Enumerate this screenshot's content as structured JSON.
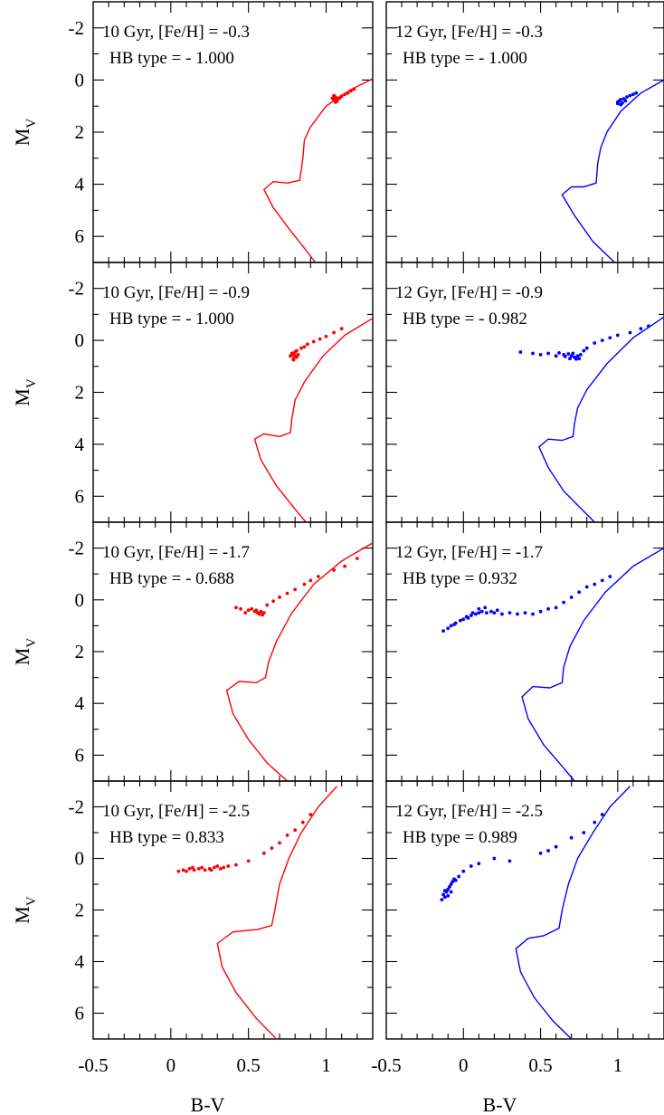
{
  "chart_data": [
    {
      "type": "scatter",
      "color": "#ff0000",
      "annotation_line1": "10 Gyr, [Fe/H] = -0.3",
      "annotation_line2": "HB type = - 1.000",
      "xlabel": "",
      "ylabel": "M_V",
      "xlim": [
        -0.5,
        1.3
      ],
      "ylim": [
        7,
        -3
      ],
      "x_ticks": [],
      "y_ticks": [
        "-2",
        "0",
        "2",
        "4",
        "6"
      ],
      "isochrone": [
        [
          1.3,
          -0.05
        ],
        [
          1.15,
          0.4
        ],
        [
          1.0,
          1.0
        ],
        [
          0.9,
          1.8
        ],
        [
          0.86,
          2.3
        ],
        [
          0.85,
          3.0
        ],
        [
          0.83,
          3.85
        ],
        [
          0.75,
          3.95
        ],
        [
          0.66,
          3.9
        ],
        [
          0.6,
          4.2
        ],
        [
          0.66,
          4.9
        ],
        [
          0.76,
          5.7
        ],
        [
          0.88,
          6.6
        ],
        [
          0.93,
          7.0
        ]
      ],
      "hb_stars": [
        [
          1.05,
          0.6
        ],
        [
          1.06,
          0.65
        ],
        [
          1.07,
          0.7
        ],
        [
          1.05,
          0.75
        ],
        [
          1.06,
          0.78
        ],
        [
          1.08,
          0.72
        ],
        [
          1.09,
          0.68
        ],
        [
          1.07,
          0.82
        ],
        [
          1.1,
          0.62
        ],
        [
          1.12,
          0.55
        ],
        [
          1.14,
          0.5
        ],
        [
          1.16,
          0.42
        ],
        [
          1.18,
          0.35
        ],
        [
          1.04,
          0.7
        ],
        [
          1.06,
          0.85
        ]
      ]
    },
    {
      "type": "scatter",
      "color": "#0000ff",
      "annotation_line1": "12 Gyr, [Fe/H] = -0.3",
      "annotation_line2": "HB type = - 1.000",
      "xlabel": "",
      "ylabel": "",
      "xlim": [
        -0.5,
        1.3
      ],
      "ylim": [
        7,
        -3
      ],
      "x_ticks": [],
      "y_ticks": [],
      "isochrone": [
        [
          1.3,
          0.0
        ],
        [
          1.15,
          0.5
        ],
        [
          1.02,
          1.2
        ],
        [
          0.93,
          2.0
        ],
        [
          0.89,
          2.6
        ],
        [
          0.87,
          3.2
        ],
        [
          0.86,
          3.95
        ],
        [
          0.78,
          4.1
        ],
        [
          0.7,
          4.1
        ],
        [
          0.64,
          4.4
        ],
        [
          0.72,
          5.2
        ],
        [
          0.84,
          6.2
        ],
        [
          0.98,
          7.0
        ]
      ],
      "hb_stars": [
        [
          1.0,
          0.85
        ],
        [
          1.01,
          0.8
        ],
        [
          1.02,
          0.75
        ],
        [
          1.0,
          0.9
        ],
        [
          1.03,
          0.88
        ],
        [
          1.04,
          0.72
        ],
        [
          1.06,
          0.65
        ],
        [
          1.08,
          0.6
        ],
        [
          1.1,
          0.55
        ],
        [
          1.12,
          0.5
        ],
        [
          1.02,
          0.95
        ],
        [
          1.05,
          0.8
        ]
      ]
    },
    {
      "type": "scatter",
      "color": "#ff0000",
      "annotation_line1": "10 Gyr, [Fe/H] = -0.9",
      "annotation_line2": "HB type = - 1.000",
      "xlabel": "",
      "ylabel": "M_V",
      "xlim": [
        -0.5,
        1.3
      ],
      "ylim": [
        7,
        -3
      ],
      "x_ticks": [],
      "y_ticks": [
        "-2",
        "0",
        "2",
        "4",
        "6"
      ],
      "isochrone": [
        [
          1.3,
          -0.85
        ],
        [
          1.12,
          -0.2
        ],
        [
          0.98,
          0.6
        ],
        [
          0.86,
          1.6
        ],
        [
          0.8,
          2.3
        ],
        [
          0.78,
          3.0
        ],
        [
          0.77,
          3.55
        ],
        [
          0.7,
          3.7
        ],
        [
          0.6,
          3.6
        ],
        [
          0.54,
          3.8
        ],
        [
          0.58,
          4.6
        ],
        [
          0.68,
          5.6
        ],
        [
          0.8,
          6.5
        ],
        [
          0.87,
          7.0
        ]
      ],
      "hb_stars": [
        [
          0.78,
          0.5
        ],
        [
          0.79,
          0.55
        ],
        [
          0.8,
          0.6
        ],
        [
          0.81,
          0.65
        ],
        [
          0.79,
          0.7
        ],
        [
          0.8,
          0.45
        ],
        [
          0.82,
          0.55
        ],
        [
          0.77,
          0.6
        ],
        [
          0.81,
          0.4
        ],
        [
          0.84,
          0.3
        ],
        [
          0.88,
          0.15
        ],
        [
          0.92,
          0.05
        ],
        [
          0.96,
          -0.05
        ],
        [
          1.0,
          -0.15
        ],
        [
          1.05,
          -0.3
        ],
        [
          1.1,
          -0.45
        ],
        [
          0.86,
          0.25
        ],
        [
          0.79,
          0.75
        ]
      ]
    },
    {
      "type": "scatter",
      "color": "#0000ff",
      "annotation_line1": "12 Gyr, [Fe/H] = -0.9",
      "annotation_line2": "HB type = - 0.982",
      "xlabel": "",
      "ylabel": "",
      "xlim": [
        -0.5,
        1.3
      ],
      "ylim": [
        7,
        -3
      ],
      "x_ticks": [],
      "y_ticks": [],
      "isochrone": [
        [
          1.3,
          -0.9
        ],
        [
          1.1,
          -0.1
        ],
        [
          0.93,
          0.9
        ],
        [
          0.8,
          1.9
        ],
        [
          0.74,
          2.6
        ],
        [
          0.72,
          3.2
        ],
        [
          0.71,
          3.7
        ],
        [
          0.64,
          3.85
        ],
        [
          0.55,
          3.8
        ],
        [
          0.49,
          4.1
        ],
        [
          0.55,
          4.9
        ],
        [
          0.65,
          5.8
        ],
        [
          0.8,
          6.7
        ],
        [
          0.85,
          7.0
        ]
      ],
      "hb_stars": [
        [
          0.37,
          0.45
        ],
        [
          0.45,
          0.5
        ],
        [
          0.5,
          0.55
        ],
        [
          0.55,
          0.5
        ],
        [
          0.6,
          0.6
        ],
        [
          0.65,
          0.55
        ],
        [
          0.7,
          0.6
        ],
        [
          0.72,
          0.65
        ],
        [
          0.69,
          0.7
        ],
        [
          0.74,
          0.6
        ],
        [
          0.76,
          0.55
        ],
        [
          0.73,
          0.72
        ],
        [
          0.68,
          0.52
        ],
        [
          0.62,
          0.48
        ],
        [
          0.78,
          0.4
        ],
        [
          0.8,
          0.3
        ],
        [
          0.85,
          0.1
        ],
        [
          0.9,
          0.0
        ],
        [
          0.95,
          -0.1
        ],
        [
          1.0,
          -0.2
        ],
        [
          1.08,
          -0.3
        ],
        [
          1.15,
          -0.45
        ],
        [
          1.2,
          -0.55
        ],
        [
          0.71,
          0.5
        ],
        [
          0.75,
          0.7
        ],
        [
          0.66,
          0.62
        ]
      ]
    },
    {
      "type": "scatter",
      "color": "#ff0000",
      "annotation_line1": "10 Gyr, [Fe/H] = -1.7",
      "annotation_line2": "HB type = - 0.688",
      "xlabel": "",
      "ylabel": "M_V",
      "xlim": [
        -0.5,
        1.3
      ],
      "ylim": [
        7,
        -3
      ],
      "x_ticks": [],
      "y_ticks": [
        "-2",
        "0",
        "2",
        "4",
        "6"
      ],
      "isochrone": [
        [
          1.3,
          -2.2
        ],
        [
          1.1,
          -1.5
        ],
        [
          0.92,
          -0.6
        ],
        [
          0.78,
          0.5
        ],
        [
          0.68,
          1.6
        ],
        [
          0.63,
          2.4
        ],
        [
          0.61,
          3.0
        ],
        [
          0.55,
          3.2
        ],
        [
          0.44,
          3.15
        ],
        [
          0.36,
          3.5
        ],
        [
          0.4,
          4.4
        ],
        [
          0.5,
          5.4
        ],
        [
          0.62,
          6.3
        ],
        [
          0.75,
          7.0
        ]
      ],
      "hb_stars": [
        [
          0.42,
          0.3
        ],
        [
          0.45,
          0.35
        ],
        [
          0.5,
          0.4
        ],
        [
          0.54,
          0.45
        ],
        [
          0.56,
          0.5
        ],
        [
          0.58,
          0.45
        ],
        [
          0.57,
          0.55
        ],
        [
          0.55,
          0.4
        ],
        [
          0.6,
          0.5
        ],
        [
          0.52,
          0.35
        ],
        [
          0.62,
          0.2
        ],
        [
          0.66,
          0.05
        ],
        [
          0.7,
          -0.1
        ],
        [
          0.75,
          -0.25
        ],
        [
          0.8,
          -0.4
        ],
        [
          0.86,
          -0.6
        ],
        [
          0.9,
          -0.75
        ],
        [
          0.95,
          -0.9
        ],
        [
          1.05,
          -1.15
        ],
        [
          1.12,
          -1.3
        ],
        [
          1.2,
          -1.6
        ],
        [
          0.48,
          0.5
        ],
        [
          0.59,
          0.58
        ]
      ]
    },
    {
      "type": "scatter",
      "color": "#0000ff",
      "annotation_line1": "12 Gyr, [Fe/H] = -1.7",
      "annotation_line2": "HB type = 0.932",
      "xlabel": "",
      "ylabel": "",
      "xlim": [
        -0.5,
        1.3
      ],
      "ylim": [
        7,
        -3
      ],
      "x_ticks": [],
      "y_ticks": [],
      "isochrone": [
        [
          1.3,
          -2.0
        ],
        [
          1.1,
          -1.3
        ],
        [
          0.92,
          -0.3
        ],
        [
          0.78,
          0.8
        ],
        [
          0.69,
          1.8
        ],
        [
          0.65,
          2.6
        ],
        [
          0.64,
          3.2
        ],
        [
          0.56,
          3.4
        ],
        [
          0.45,
          3.35
        ],
        [
          0.38,
          3.75
        ],
        [
          0.42,
          4.6
        ],
        [
          0.52,
          5.6
        ],
        [
          0.65,
          6.5
        ],
        [
          0.72,
          7.0
        ]
      ],
      "hb_stars": [
        [
          -0.13,
          1.2
        ],
        [
          -0.1,
          1.1
        ],
        [
          -0.08,
          1.0
        ],
        [
          -0.05,
          0.9
        ],
        [
          -0.02,
          0.8
        ],
        [
          0.0,
          0.75
        ],
        [
          0.03,
          0.7
        ],
        [
          0.05,
          0.6
        ],
        [
          0.08,
          0.55
        ],
        [
          0.1,
          0.5
        ],
        [
          0.12,
          0.45
        ],
        [
          0.15,
          0.5
        ],
        [
          0.18,
          0.45
        ],
        [
          0.2,
          0.5
        ],
        [
          0.25,
          0.55
        ],
        [
          0.3,
          0.5
        ],
        [
          0.35,
          0.55
        ],
        [
          0.4,
          0.5
        ],
        [
          0.45,
          0.55
        ],
        [
          0.5,
          0.45
        ],
        [
          0.55,
          0.35
        ],
        [
          0.6,
          0.3
        ],
        [
          0.65,
          0.1
        ],
        [
          0.7,
          -0.1
        ],
        [
          0.75,
          -0.3
        ],
        [
          0.8,
          -0.5
        ],
        [
          0.85,
          -0.6
        ],
        [
          0.9,
          -0.75
        ],
        [
          0.95,
          -0.9
        ],
        [
          -0.06,
          0.95
        ],
        [
          0.02,
          0.65
        ],
        [
          0.06,
          0.5
        ],
        [
          0.1,
          0.35
        ],
        [
          0.14,
          0.3
        ],
        [
          0.22,
          0.4
        ]
      ]
    },
    {
      "type": "scatter",
      "color": "#ff0000",
      "annotation_line1": "10 Gyr, [Fe/H] = -2.5",
      "annotation_line2": "HB type = 0.833",
      "xlabel": "B-V",
      "ylabel": "M_V",
      "xlim": [
        -0.5,
        1.3
      ],
      "ylim": [
        7,
        -3
      ],
      "x_ticks": [
        "-0.5",
        "0",
        "0.5",
        "1"
      ],
      "y_ticks": [
        "-2",
        "0",
        "2",
        "4",
        "6"
      ],
      "isochrone": [
        [
          1.07,
          -2.8
        ],
        [
          0.95,
          -2.0
        ],
        [
          0.84,
          -1.0
        ],
        [
          0.76,
          0.0
        ],
        [
          0.7,
          1.0
        ],
        [
          0.67,
          2.0
        ],
        [
          0.65,
          2.6
        ],
        [
          0.56,
          2.75
        ],
        [
          0.4,
          2.85
        ],
        [
          0.3,
          3.3
        ],
        [
          0.33,
          4.2
        ],
        [
          0.42,
          5.2
        ],
        [
          0.55,
          6.2
        ],
        [
          0.68,
          7.0
        ]
      ],
      "hb_stars": [
        [
          0.05,
          0.5
        ],
        [
          0.08,
          0.45
        ],
        [
          0.1,
          0.5
        ],
        [
          0.12,
          0.4
        ],
        [
          0.15,
          0.45
        ],
        [
          0.18,
          0.4
        ],
        [
          0.2,
          0.35
        ],
        [
          0.22,
          0.45
        ],
        [
          0.25,
          0.4
        ],
        [
          0.28,
          0.35
        ],
        [
          0.3,
          0.3
        ],
        [
          0.32,
          0.4
        ],
        [
          0.34,
          0.35
        ],
        [
          0.26,
          0.45
        ],
        [
          0.14,
          0.35
        ],
        [
          0.37,
          0.3
        ],
        [
          0.42,
          0.25
        ],
        [
          0.5,
          0.1
        ],
        [
          0.6,
          -0.2
        ],
        [
          0.65,
          -0.4
        ],
        [
          0.7,
          -0.6
        ],
        [
          0.75,
          -0.9
        ],
        [
          0.8,
          -1.1
        ],
        [
          0.85,
          -1.4
        ],
        [
          0.9,
          -1.7
        ]
      ]
    },
    {
      "type": "scatter",
      "color": "#0000ff",
      "annotation_line1": "12 Gyr, [Fe/H] = -2.5",
      "annotation_line2": "HB type = 0.989",
      "xlabel": "B-V",
      "ylabel": "",
      "xlim": [
        -0.5,
        1.3
      ],
      "ylim": [
        7,
        -3
      ],
      "x_ticks": [
        "-0.5",
        "0",
        "0.5",
        "1"
      ],
      "y_ticks": [],
      "isochrone": [
        [
          1.08,
          -2.8
        ],
        [
          0.95,
          -2.0
        ],
        [
          0.84,
          -1.0
        ],
        [
          0.74,
          0.0
        ],
        [
          0.68,
          1.0
        ],
        [
          0.64,
          2.0
        ],
        [
          0.62,
          2.7
        ],
        [
          0.52,
          3.0
        ],
        [
          0.42,
          3.1
        ],
        [
          0.34,
          3.5
        ],
        [
          0.37,
          4.4
        ],
        [
          0.46,
          5.4
        ],
        [
          0.58,
          6.3
        ],
        [
          0.7,
          7.0
        ]
      ],
      "hb_stars": [
        [
          -0.14,
          1.6
        ],
        [
          -0.12,
          1.5
        ],
        [
          -0.13,
          1.4
        ],
        [
          -0.11,
          1.3
        ],
        [
          -0.1,
          1.2
        ],
        [
          -0.09,
          1.1
        ],
        [
          -0.08,
          1.0
        ],
        [
          -0.07,
          0.9
        ],
        [
          -0.06,
          0.8
        ],
        [
          -0.1,
          1.45
        ],
        [
          -0.12,
          1.25
        ],
        [
          -0.08,
          1.3
        ],
        [
          -0.05,
          0.85
        ],
        [
          -0.03,
          0.7
        ],
        [
          0.0,
          0.5
        ],
        [
          0.05,
          0.3
        ],
        [
          0.1,
          0.2
        ],
        [
          0.2,
          0.0
        ],
        [
          0.3,
          0.1
        ],
        [
          0.5,
          -0.2
        ],
        [
          0.55,
          -0.3
        ],
        [
          0.6,
          -0.45
        ],
        [
          0.7,
          -0.8
        ],
        [
          0.78,
          -1.0
        ],
        [
          0.85,
          -1.4
        ],
        [
          0.9,
          -1.7
        ]
      ]
    }
  ]
}
